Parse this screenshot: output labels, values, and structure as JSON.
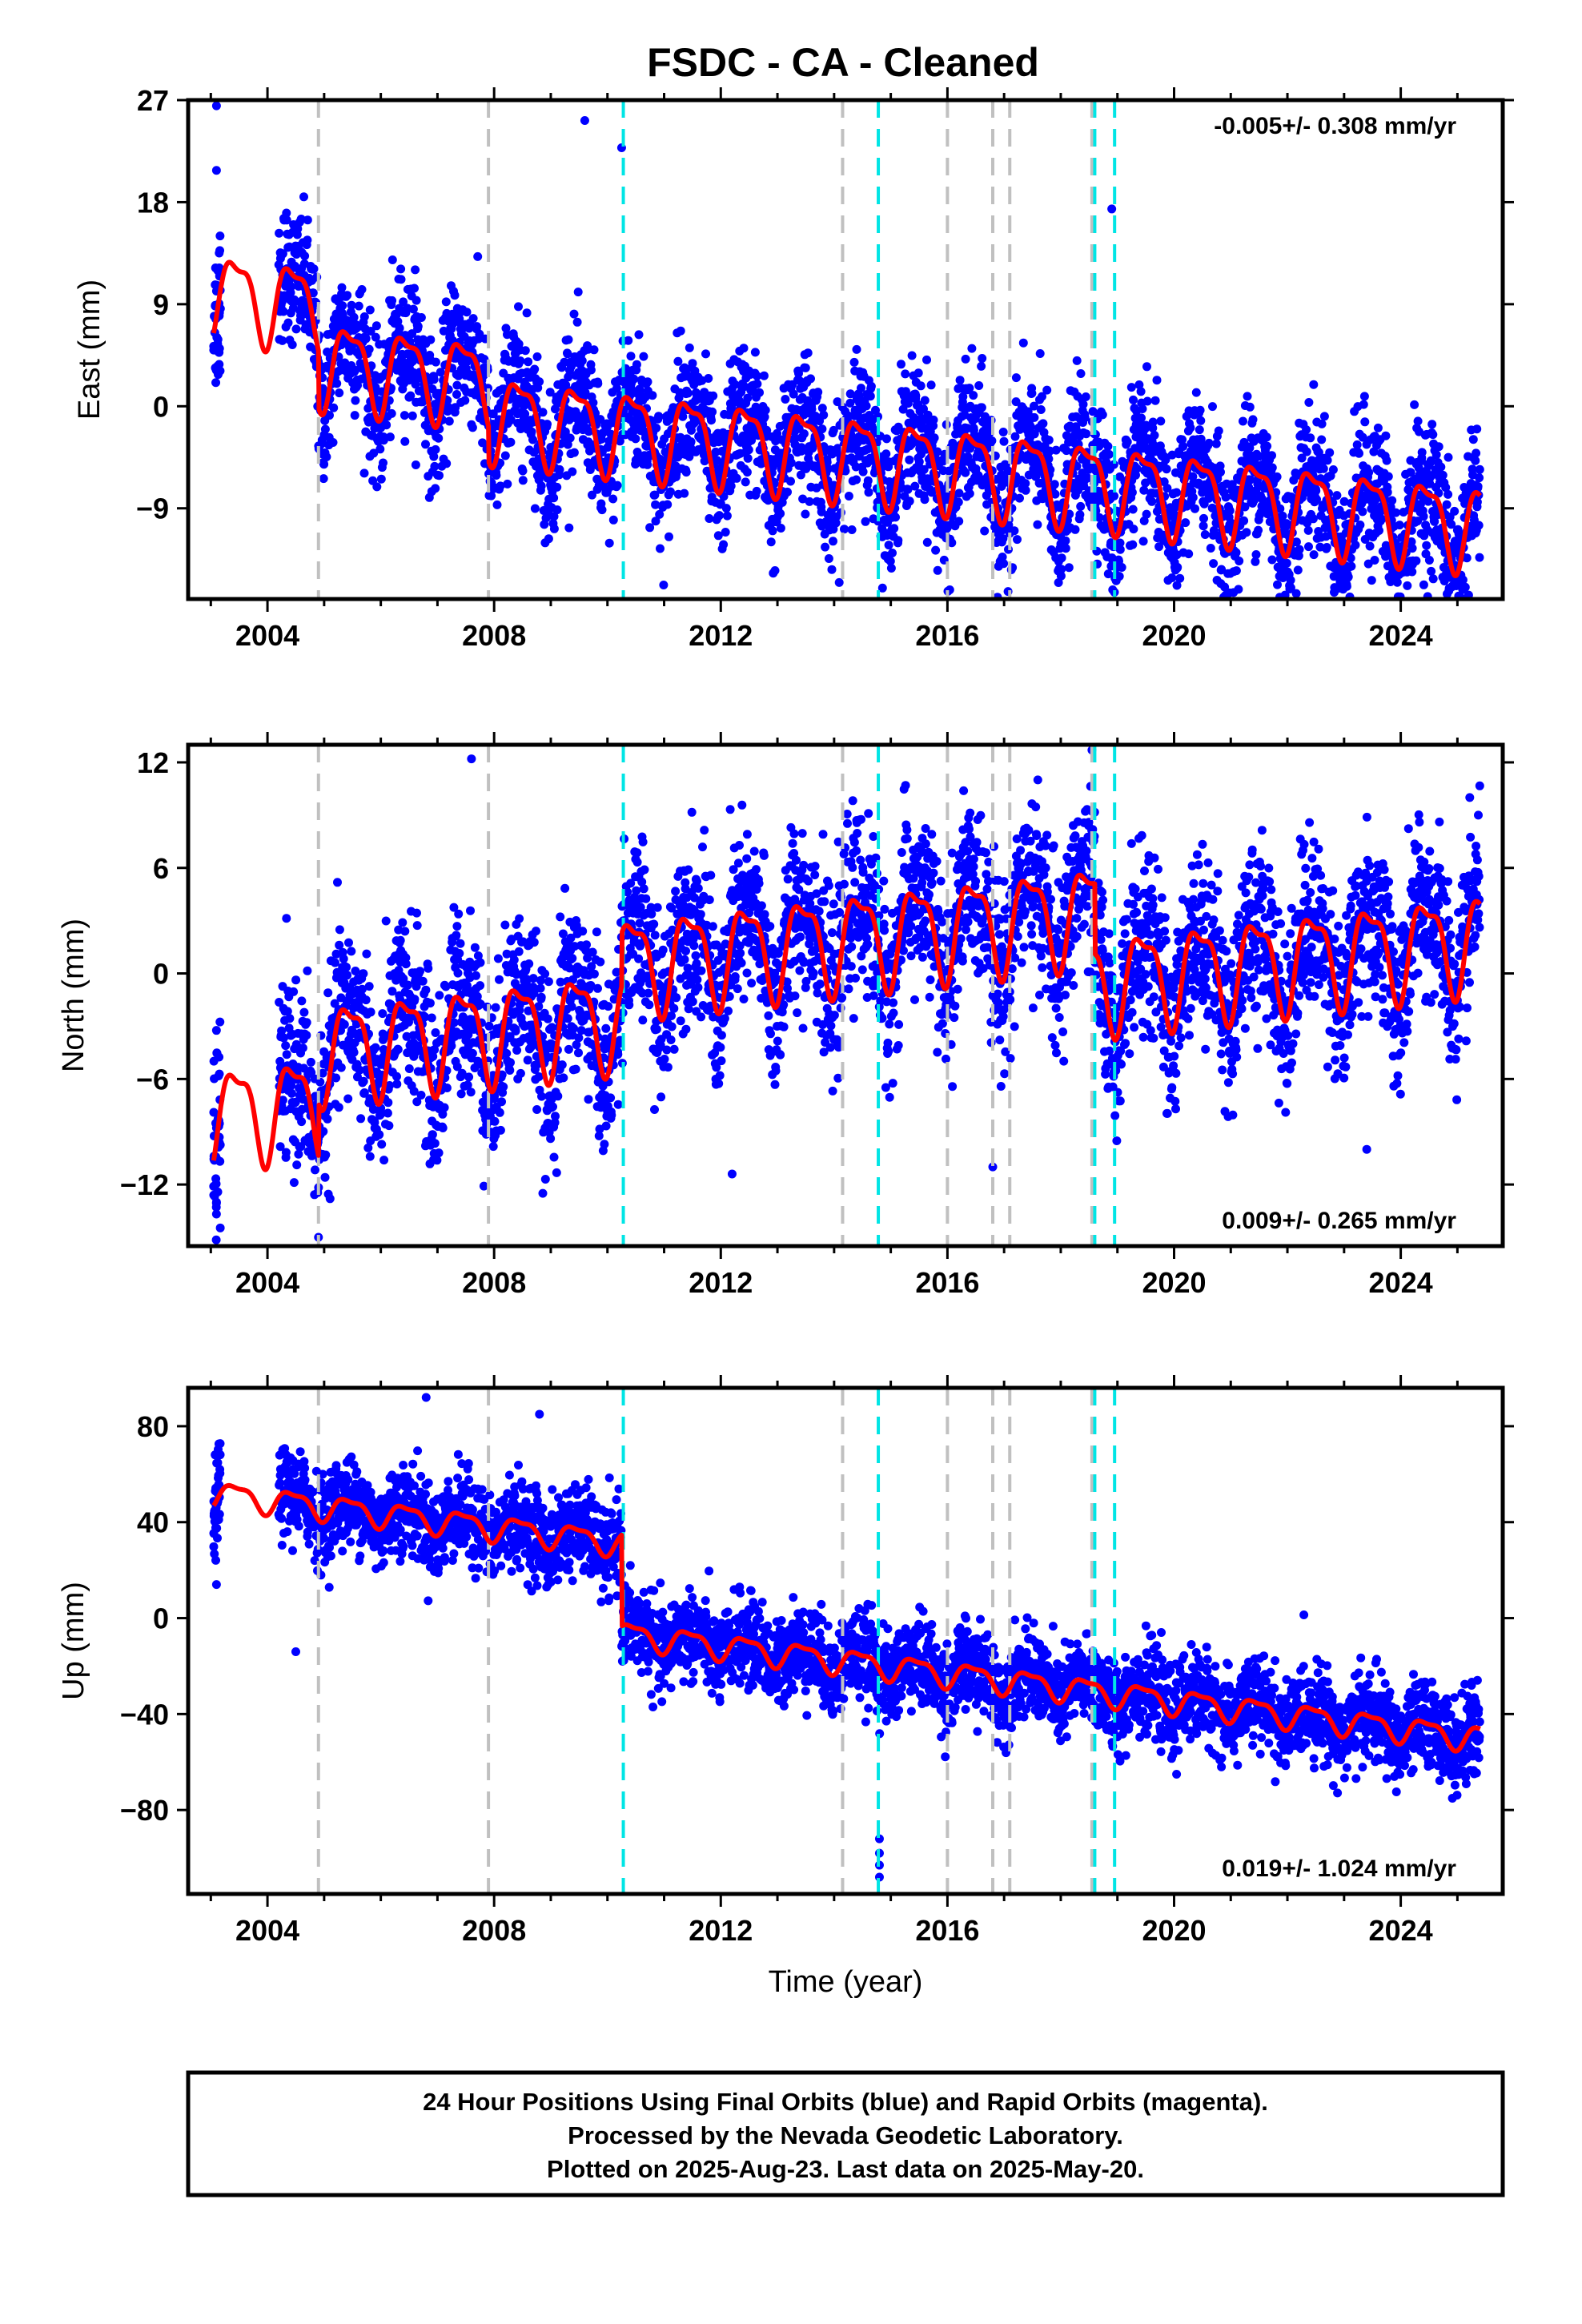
{
  "title": "FSDC  - CA - Cleaned",
  "colors": {
    "points": "#0000ff",
    "model": "#ff0000",
    "equipment_change": "#c0c0c0",
    "earthquake": "#00e5e5",
    "frame": "#000000"
  },
  "chart_data": [
    {
      "type": "scatter",
      "name": "east",
      "ylabel": "East (mm)",
      "xlabel": "",
      "ylim": [
        -17,
        27
      ],
      "yticks": [
        27,
        18,
        9,
        0,
        -9
      ],
      "xlim": [
        2002.6,
        2025.8
      ],
      "xticks": [
        2004,
        2008,
        2012,
        2016,
        2020,
        2024
      ],
      "rate_text": "-0.005+/- 0.308 mm/yr",
      "rate_position": "top-right",
      "model": {
        "mean_start": 10,
        "mean_end": -2.5,
        "amplitude": 3.5,
        "noise_sd": 3.0,
        "steps": [
          {
            "t": 2004.9,
            "d": -5
          },
          {
            "t": 2007.9,
            "d": -3
          }
        ]
      },
      "outliers": [
        [
          2003.1,
          26.5
        ],
        [
          2003.1,
          20.8
        ],
        [
          2010.25,
          22.8
        ],
        [
          2009.6,
          25.2
        ],
        [
          2018.9,
          17.4
        ],
        [
          2020.05,
          -15.8
        ],
        [
          2024.2,
          -14.6
        ]
      ]
    },
    {
      "type": "scatter",
      "name": "north",
      "ylabel": "North (mm)",
      "xlabel": "",
      "ylim": [
        -15.5,
        13
      ],
      "yticks": [
        12,
        6,
        0,
        -6,
        -12
      ],
      "xlim": [
        2002.6,
        2025.8
      ],
      "xticks": [
        2004,
        2008,
        2012,
        2016,
        2020,
        2024
      ],
      "rate_text": "0.009+/- 0.265 mm/yr",
      "rate_position": "bottom-right",
      "model": {
        "mean_start": -8,
        "mean_end": 0,
        "amplitude": 2.6,
        "noise_sd": 2.4,
        "steps": [
          {
            "t": 2004.9,
            "d": 3
          },
          {
            "t": 2010.25,
            "d": 3
          },
          {
            "t": 2018.6,
            "d": -4
          }
        ]
      },
      "outliers": [
        [
          2003.1,
          -13
        ],
        [
          2004.9,
          -15
        ],
        [
          2007.6,
          12.2
        ],
        [
          2012.2,
          -11.4
        ],
        [
          2016.8,
          -11
        ],
        [
          2018.55,
          12.7
        ],
        [
          2023.4,
          -10
        ]
      ]
    },
    {
      "type": "scatter",
      "name": "up",
      "ylabel": "Up (mm)",
      "xlabel": "Time (year)",
      "ylim": [
        -115,
        96
      ],
      "yticks": [
        80,
        40,
        0,
        -40,
        -80
      ],
      "xlim": [
        2002.6,
        2025.8
      ],
      "xticks": [
        2004,
        2008,
        2012,
        2016,
        2020,
        2024
      ],
      "rate_text": "0.019+/- 1.024 mm/yr",
      "rate_position": "bottom-right",
      "model": {
        "mean_start": 52,
        "mean_end": -12,
        "amplitude": 5,
        "noise_sd": 9,
        "steps": [
          {
            "t": 2010.25,
            "d": -38
          }
        ]
      },
      "outliers": [
        [
          2003.1,
          14
        ],
        [
          2004.5,
          -14
        ],
        [
          2014.8,
          -92
        ],
        [
          2014.8,
          -98
        ],
        [
          2014.8,
          -103
        ],
        [
          2014.8,
          -108
        ],
        [
          2006.8,
          92
        ],
        [
          2008.8,
          85
        ]
      ]
    }
  ],
  "offsets": {
    "equipment_change_years": [
      2004.9,
      2007.9,
      2014.15,
      2016.0,
      2016.8,
      2017.1,
      2018.55
    ],
    "earthquake_years": [
      2010.28,
      2014.78,
      2018.6,
      2018.95
    ]
  },
  "footer": {
    "line1": "24 Hour Positions Using Final Orbits (blue) and Rapid Orbits (magenta).",
    "line2": "Processed by the Nevada Geodetic Laboratory.",
    "line3": "Plotted on 2025-Aug-23. Last data on 2025-May-20."
  }
}
